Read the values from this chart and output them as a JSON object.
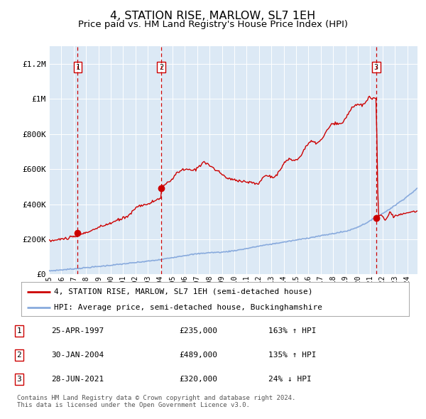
{
  "title": "4, STATION RISE, MARLOW, SL7 1EH",
  "subtitle": "Price paid vs. HM Land Registry's House Price Index (HPI)",
  "title_fontsize": 11.5,
  "subtitle_fontsize": 9.5,
  "bg_color": "#dce9f5",
  "grid_color": "#ffffff",
  "red_line_color": "#cc0000",
  "blue_line_color": "#88aadd",
  "sale_marker_color": "#cc0000",
  "dashed_line_color": "#cc0000",
  "ylim": [
    0,
    1300000
  ],
  "yticks": [
    0,
    200000,
    400000,
    600000,
    800000,
    1000000,
    1200000
  ],
  "ytick_labels": [
    "£0",
    "£200K",
    "£400K",
    "£600K",
    "£800K",
    "£1M",
    "£1.2M"
  ],
  "sale_dates": [
    1997.32,
    2004.08,
    2021.49
  ],
  "sale_prices": [
    235000,
    489000,
    320000
  ],
  "legend_entries": [
    {
      "label": "4, STATION RISE, MARLOW, SL7 1EH (semi-detached house)",
      "color": "#cc0000"
    },
    {
      "label": "HPI: Average price, semi-detached house, Buckinghamshire",
      "color": "#88aadd"
    }
  ],
  "table_rows": [
    {
      "num": "1",
      "date": "25-APR-1997",
      "price": "£235,000",
      "hpi": "163% ↑ HPI"
    },
    {
      "num": "2",
      "date": "30-JAN-2004",
      "price": "£489,000",
      "hpi": "135% ↑ HPI"
    },
    {
      "num": "3",
      "date": "28-JUN-2021",
      "price": "£320,000",
      "hpi": "24% ↓ HPI"
    }
  ],
  "footer": "Contains HM Land Registry data © Crown copyright and database right 2024.\nThis data is licensed under the Open Government Licence v3.0.",
  "xmin": 1995.0,
  "xmax": 2024.83
}
